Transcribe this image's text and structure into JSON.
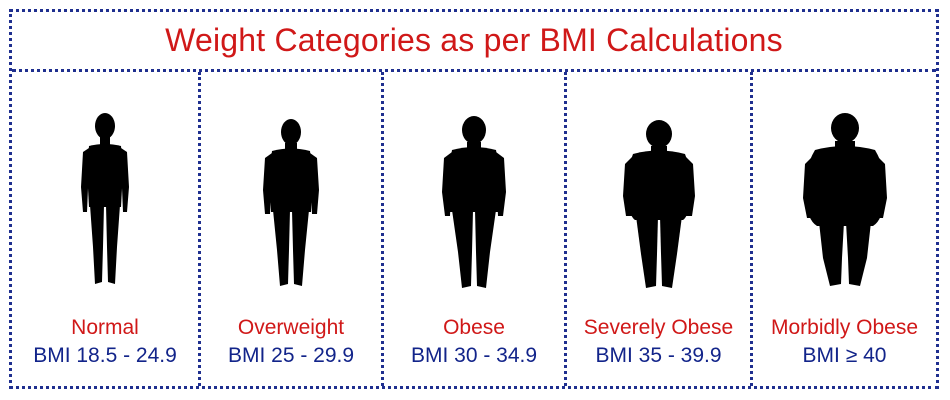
{
  "title": "Weight Categories as per BMI Calculations",
  "colors": {
    "title": "#d01818",
    "category": "#d01818",
    "bmi": "#12248a",
    "border": "#1f2f8f",
    "silhouette": "#000000"
  },
  "categories": [
    {
      "name": "Normal",
      "bmi": "BMI 18.5 - 24.9",
      "icon": "normal-silhouette-icon"
    },
    {
      "name": "Overweight",
      "bmi": "BMI 25 - 29.9",
      "icon": "overweight-silhouette-icon"
    },
    {
      "name": "Obese",
      "bmi": "BMI 30 - 34.9",
      "icon": "obese-silhouette-icon"
    },
    {
      "name": "Severely Obese",
      "bmi": "BMI 35 - 39.9",
      "icon": "severely-obese-silhouette-icon"
    },
    {
      "name": "Morbidly Obese",
      "bmi": "BMI ≥ 40",
      "icon": "morbidly-obese-silhouette-icon"
    }
  ]
}
